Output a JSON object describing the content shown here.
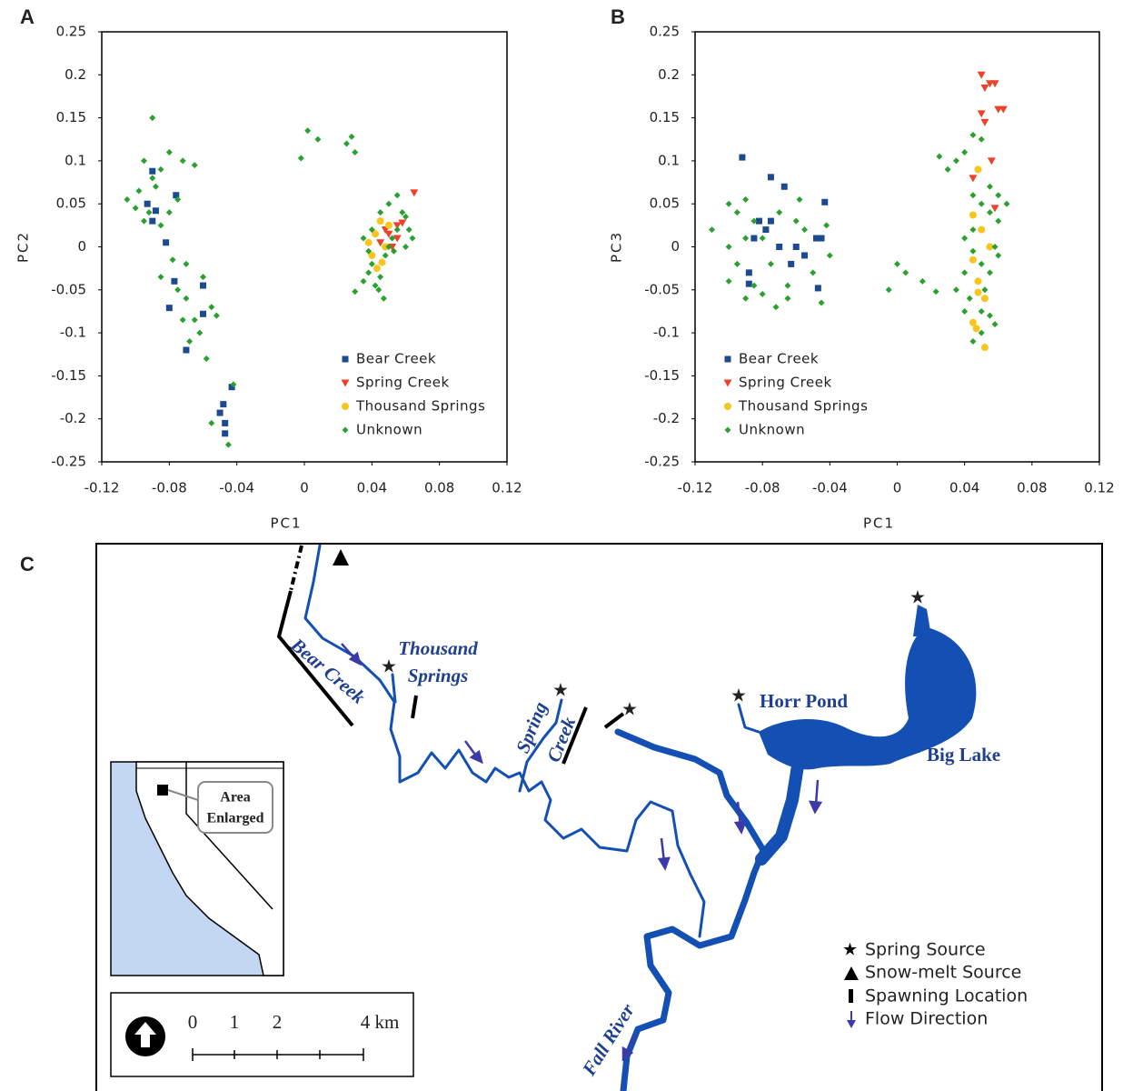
{
  "chart_data": [
    {
      "type": "scatter",
      "panel": "A",
      "x_label": "PC1",
      "y_label": "PC2",
      "xlim": [
        -0.12,
        0.12
      ],
      "xticks": [
        -0.12,
        -0.08,
        -0.04,
        0,
        0.04,
        0.08,
        0.12
      ],
      "ylim": [
        -0.25,
        0.25
      ],
      "yticks": [
        0.25,
        0.2,
        0.15,
        0.1,
        0.05,
        0,
        -0.05,
        -0.1,
        -0.15,
        -0.2,
        -0.25
      ],
      "legend": "lower right",
      "series": [
        {
          "name": "Bear Creek",
          "color": "#1b4a91",
          "marker": "square",
          "x": [
            -0.09,
            -0.093,
            -0.088,
            -0.076,
            -0.082,
            -0.077,
            -0.08,
            -0.06,
            -0.06,
            -0.07,
            -0.043,
            -0.048,
            -0.05,
            -0.047,
            -0.047,
            -0.09
          ],
          "values": [
            0.088,
            0.05,
            0.042,
            0.06,
            0.005,
            -0.04,
            -0.071,
            -0.045,
            -0.078,
            -0.12,
            -0.163,
            -0.183,
            -0.193,
            -0.205,
            -0.217,
            0.03
          ]
        },
        {
          "name": "Spring Creek",
          "color": "#ee4127",
          "marker": "triangle-down",
          "x": [
            0.065,
            0.055,
            0.05,
            0.045,
            0.052,
            0.058,
            0.048,
            0.055
          ],
          "values": [
            0.063,
            0.025,
            0.015,
            0.005,
            0.0,
            0.028,
            0.02,
            0.01
          ]
        },
        {
          "name": "Thousand Springs",
          "color": "#f7c51b",
          "marker": "circle",
          "x": [
            0.045,
            0.042,
            0.048,
            0.04,
            0.043,
            0.05,
            0.038,
            0.046
          ],
          "values": [
            0.03,
            0.015,
            0.0,
            -0.01,
            -0.025,
            0.025,
            0.005,
            -0.018
          ]
        },
        {
          "name": "Unknown",
          "color": "#2aa12f",
          "marker": "diamond",
          "x": [
            -0.09,
            -0.095,
            -0.085,
            -0.08,
            -0.072,
            -0.065,
            -0.105,
            -0.098,
            -0.092,
            -0.085,
            -0.088,
            -0.095,
            -0.08,
            -0.075,
            -0.09,
            -0.1,
            -0.085,
            -0.075,
            -0.07,
            -0.065,
            -0.062,
            -0.068,
            -0.058,
            -0.055,
            -0.052,
            -0.06,
            -0.072,
            -0.078,
            -0.07,
            -0.055,
            -0.045,
            -0.042,
            0.002,
            0.008,
            -0.002,
            0.025,
            0.028,
            0.03,
            0.03,
            0.035,
            0.038,
            0.04,
            0.042,
            0.045,
            0.048,
            0.05,
            0.052,
            0.055,
            0.058,
            0.06,
            0.062,
            0.064,
            0.055,
            0.05,
            0.035,
            0.04,
            0.045,
            0.06,
            0.044,
            0.047,
            0.053,
            0.038
          ],
          "values": [
            0.15,
            0.1,
            0.09,
            0.11,
            0.1,
            0.095,
            0.055,
            0.065,
            0.04,
            0.025,
            0.07,
            0.03,
            0.04,
            0.055,
            0.08,
            0.045,
            -0.035,
            -0.05,
            -0.06,
            -0.085,
            -0.1,
            -0.11,
            -0.13,
            -0.07,
            -0.08,
            -0.035,
            -0.085,
            -0.015,
            -0.02,
            -0.205,
            -0.23,
            -0.16,
            0.135,
            0.125,
            0.103,
            0.12,
            0.128,
            0.11,
            -0.052,
            -0.04,
            -0.03,
            -0.02,
            -0.045,
            -0.035,
            -0.01,
            0.0,
            0.01,
            0.02,
            0.04,
            0.035,
            0.02,
            0.01,
            0.06,
            0.05,
            0.01,
            0.02,
            0.04,
            0.0,
            -0.05,
            -0.06,
            -0.005,
            -0.005
          ]
        }
      ]
    },
    {
      "type": "scatter",
      "panel": "B",
      "x_label": "PC1",
      "y_label": "PC3",
      "xlim": [
        -0.12,
        0.12
      ],
      "xticks": [
        -0.12,
        -0.08,
        -0.04,
        0,
        0.04,
        0.08,
        0.12
      ],
      "ylim": [
        -0.25,
        0.25
      ],
      "yticks": [
        0.25,
        0.2,
        0.15,
        0.1,
        0.05,
        0,
        -0.05,
        -0.1,
        -0.15,
        -0.2,
        -0.25
      ],
      "legend": "lower left",
      "series": [
        {
          "name": "Bear Creek",
          "color": "#1b4a91",
          "marker": "square",
          "x": [
            -0.092,
            -0.075,
            -0.082,
            -0.067,
            -0.078,
            -0.085,
            -0.07,
            -0.06,
            -0.063,
            -0.048,
            -0.045,
            -0.043,
            -0.088,
            -0.088,
            -0.047,
            -0.075,
            -0.055
          ],
          "values": [
            0.104,
            0.081,
            0.03,
            0.07,
            0.02,
            0.01,
            0.0,
            0.0,
            -0.02,
            0.01,
            0.01,
            0.052,
            -0.03,
            -0.043,
            -0.048,
            0.03,
            -0.01
          ]
        },
        {
          "name": "Spring Creek",
          "color": "#ee4127",
          "marker": "triangle-down",
          "x": [
            0.05,
            0.052,
            0.055,
            0.058,
            0.06,
            0.063,
            0.05,
            0.052,
            0.056,
            0.058,
            0.045
          ],
          "values": [
            0.2,
            0.185,
            0.19,
            0.19,
            0.16,
            0.16,
            0.155,
            0.145,
            0.1,
            0.045,
            0.08
          ]
        },
        {
          "name": "Thousand Springs",
          "color": "#f7c51b",
          "marker": "circle",
          "x": [
            0.045,
            0.05,
            0.055,
            0.045,
            0.048,
            0.052,
            0.045,
            0.047,
            0.052,
            0.048,
            0.048
          ],
          "values": [
            0.037,
            0.02,
            0.0,
            -0.015,
            -0.053,
            -0.06,
            -0.088,
            -0.095,
            -0.117,
            0.09,
            -0.04
          ]
        },
        {
          "name": "Unknown",
          "color": "#2aa12f",
          "marker": "diamond",
          "x": [
            -0.11,
            -0.1,
            -0.095,
            -0.09,
            -0.1,
            -0.095,
            -0.09,
            -0.085,
            -0.08,
            -0.075,
            -0.07,
            -0.065,
            -0.06,
            -0.055,
            -0.05,
            -0.045,
            -0.04,
            -0.042,
            -0.065,
            -0.08,
            -0.09,
            -0.072,
            -0.058,
            -0.085,
            -0.1,
            0.0,
            -0.005,
            0.005,
            0.015,
            0.023,
            0.025,
            0.03,
            0.035,
            0.04,
            0.045,
            0.05,
            0.045,
            0.05,
            0.055,
            0.06,
            0.065,
            0.04,
            0.045,
            0.05,
            0.055,
            0.06,
            0.04,
            0.043,
            0.05,
            0.055,
            0.058,
            0.045,
            0.05,
            0.052,
            0.035,
            0.04,
            0.058,
            0.055,
            0.06,
            0.045
          ],
          "values": [
            0.02,
            0.05,
            0.04,
            0.055,
            0.0,
            -0.02,
            -0.06,
            -0.045,
            0.01,
            -0.02,
            0.04,
            -0.045,
            0.03,
            0.02,
            -0.03,
            -0.065,
            -0.01,
            0.025,
            -0.06,
            -0.055,
            0.01,
            -0.07,
            0.055,
            0.03,
            -0.04,
            -0.02,
            -0.05,
            -0.03,
            -0.04,
            -0.052,
            0.105,
            0.09,
            0.1,
            0.11,
            0.13,
            0.125,
            0.06,
            0.05,
            0.04,
            0.03,
            0.05,
            0.01,
            -0.005,
            -0.02,
            -0.03,
            -0.01,
            -0.03,
            -0.06,
            -0.075,
            -0.08,
            -0.09,
            -0.11,
            -0.1,
            -0.05,
            -0.05,
            -0.075,
            0.0,
            0.07,
            0.06,
            0.02
          ]
        }
      ]
    }
  ],
  "map": {
    "panel": "C",
    "labels": {
      "bear_creek": "Bear Creek",
      "thousand": "Thousand",
      "springs": "Springs",
      "spring": "Spring",
      "creek": "Creek",
      "horr_pond": "Horr Pond",
      "big_lake": "Big Lake",
      "fall_river": "Fall River"
    },
    "inset": [
      "Area",
      "Enlarged"
    ],
    "scale": [
      "0",
      "1",
      "2",
      "4 km"
    ],
    "legend": [
      "Spring Source",
      "Snow-melt Source",
      "Spawning Location",
      "Flow Direction"
    ]
  }
}
